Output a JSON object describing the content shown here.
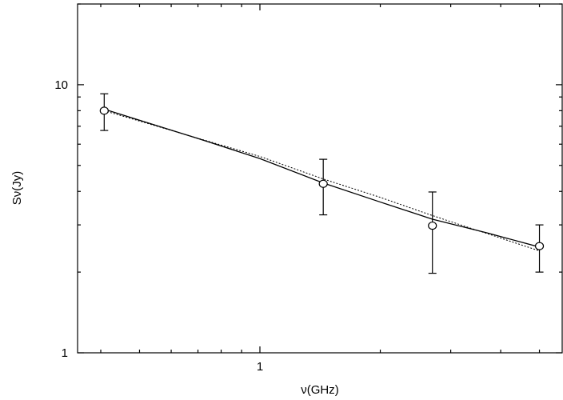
{
  "chart_data": {
    "type": "scatter",
    "x_label": "ν(GHz)",
    "y_label": "Sν(Jy)",
    "x_scale": "log",
    "y_scale": "log",
    "xlim": [
      0.35,
      5.7
    ],
    "ylim": [
      1,
      20
    ],
    "xticks": [
      1
    ],
    "yticks": [
      1,
      10
    ],
    "xminorticks": [
      0.4,
      0.5,
      0.6,
      0.7,
      0.8,
      0.9,
      2,
      3,
      4,
      5
    ],
    "yminorticks": [
      2,
      3,
      4,
      5,
      6,
      7,
      8,
      9,
      20
    ],
    "points": {
      "x": [
        0.408,
        1.44,
        2.7,
        5.0
      ],
      "values": [
        8.0,
        4.27,
        2.98,
        2.5
      ],
      "errors": [
        1.25,
        1.0,
        1.0,
        0.5
      ],
      "color": "#000000"
    },
    "series": [
      {
        "style": "solid",
        "color": "#000000",
        "x": [
          0.408,
          0.7,
          1,
          1.44,
          2,
          2.7,
          3.7,
          5.0
        ],
        "values": [
          8.1,
          6.3,
          5.3,
          4.3,
          3.65,
          3.15,
          2.8,
          2.48
        ]
      },
      {
        "style": "dotted",
        "color": "#000000",
        "x": [
          0.408,
          1,
          1.44,
          2,
          2.7,
          5.0
        ],
        "values": [
          8.0,
          5.4,
          4.45,
          3.8,
          3.25,
          2.4
        ]
      }
    ]
  }
}
